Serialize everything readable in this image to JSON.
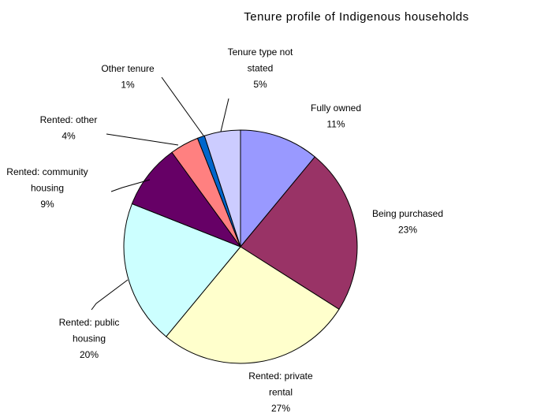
{
  "chart_data": {
    "type": "pie",
    "title": "Tenure profile of Indigenous households",
    "categories": [
      "Fully owned",
      "Being purchased",
      "Rented: private rental",
      "Rented: public housing",
      "Rented: community housing",
      "Rented: other",
      "Other tenure",
      "Tenure type not stated"
    ],
    "values": [
      11,
      23,
      27,
      20,
      9,
      4,
      1,
      5
    ],
    "value_labels": [
      "11%",
      "23%",
      "27%",
      "20%",
      "9%",
      "4%",
      "1%",
      "5%"
    ],
    "colors": [
      "#9999ff",
      "#993366",
      "#ffffcc",
      "#ccffff",
      "#660066",
      "#ff8080",
      "#0066cc",
      "#ccccff"
    ]
  }
}
